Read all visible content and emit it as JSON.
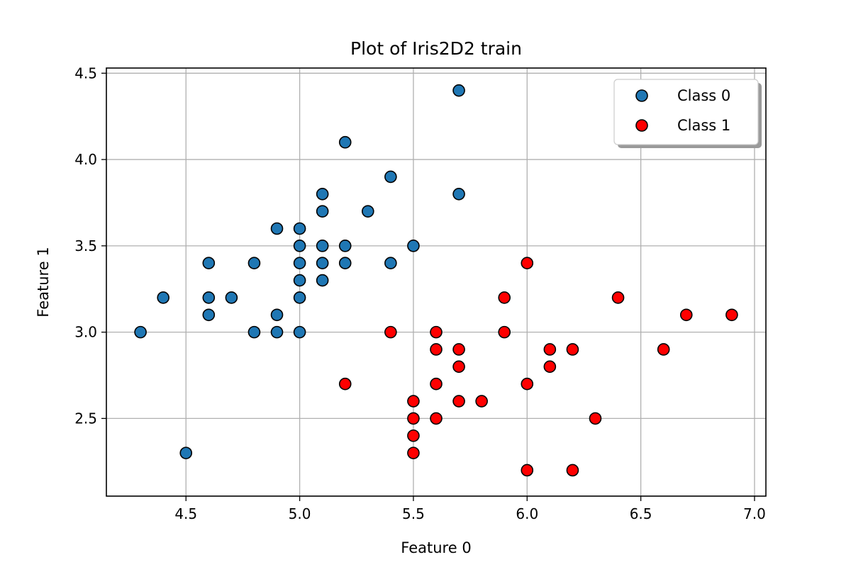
{
  "chart_data": {
    "type": "scatter",
    "title": "Plot of Iris2D2 train",
    "xlabel": "Feature 0",
    "ylabel": "Feature 1",
    "xlim": [
      4.15,
      7.05
    ],
    "ylim": [
      2.05,
      4.53
    ],
    "xticks": [
      4.5,
      5.0,
      5.5,
      6.0,
      6.5,
      7.0
    ],
    "xtick_labels": [
      "4.5",
      "5.0",
      "5.5",
      "6.0",
      "6.5",
      "7.0"
    ],
    "yticks": [
      2.5,
      3.0,
      3.5,
      4.0,
      4.5
    ],
    "ytick_labels": [
      "2.5",
      "3.0",
      "3.5",
      "4.0",
      "4.5"
    ],
    "grid": true,
    "legend_position": "top-right",
    "series": [
      {
        "name": "Class 0",
        "color": "#1f77b4",
        "points": [
          [
            5.7,
            4.4
          ],
          [
            5.2,
            4.1
          ],
          [
            5.4,
            3.9
          ],
          [
            5.1,
            3.8
          ],
          [
            5.7,
            3.8
          ],
          [
            5.1,
            3.7
          ],
          [
            5.3,
            3.7
          ],
          [
            4.9,
            3.6
          ],
          [
            5.0,
            3.6
          ],
          [
            5.0,
            3.5
          ],
          [
            5.1,
            3.5
          ],
          [
            5.2,
            3.5
          ],
          [
            5.5,
            3.5
          ],
          [
            4.6,
            3.4
          ],
          [
            4.8,
            3.4
          ],
          [
            5.0,
            3.4
          ],
          [
            5.1,
            3.4
          ],
          [
            5.2,
            3.4
          ],
          [
            5.4,
            3.4
          ],
          [
            5.0,
            3.3
          ],
          [
            5.1,
            3.3
          ],
          [
            4.4,
            3.2
          ],
          [
            4.6,
            3.2
          ],
          [
            4.7,
            3.2
          ],
          [
            5.0,
            3.2
          ],
          [
            4.6,
            3.1
          ],
          [
            4.9,
            3.1
          ],
          [
            4.3,
            3.0
          ],
          [
            4.8,
            3.0
          ],
          [
            4.9,
            3.0
          ],
          [
            5.0,
            3.0
          ],
          [
            4.5,
            2.3
          ]
        ]
      },
      {
        "name": "Class 1",
        "color": "#ff0000",
        "points": [
          [
            6.0,
            3.4
          ],
          [
            5.9,
            3.2
          ],
          [
            6.4,
            3.2
          ],
          [
            6.7,
            3.1
          ],
          [
            6.9,
            3.1
          ],
          [
            5.4,
            3.0
          ],
          [
            5.6,
            3.0
          ],
          [
            5.9,
            3.0
          ],
          [
            5.6,
            2.9
          ],
          [
            5.7,
            2.9
          ],
          [
            6.1,
            2.9
          ],
          [
            6.2,
            2.9
          ],
          [
            6.6,
            2.9
          ],
          [
            5.7,
            2.8
          ],
          [
            6.1,
            2.8
          ],
          [
            5.2,
            2.7
          ],
          [
            5.6,
            2.7
          ],
          [
            6.0,
            2.7
          ],
          [
            5.5,
            2.6
          ],
          [
            5.7,
            2.6
          ],
          [
            5.8,
            2.6
          ],
          [
            5.5,
            2.5
          ],
          [
            5.6,
            2.5
          ],
          [
            6.3,
            2.5
          ],
          [
            5.5,
            2.4
          ],
          [
            5.5,
            2.3
          ],
          [
            6.0,
            2.2
          ],
          [
            6.2,
            2.2
          ]
        ]
      }
    ]
  }
}
